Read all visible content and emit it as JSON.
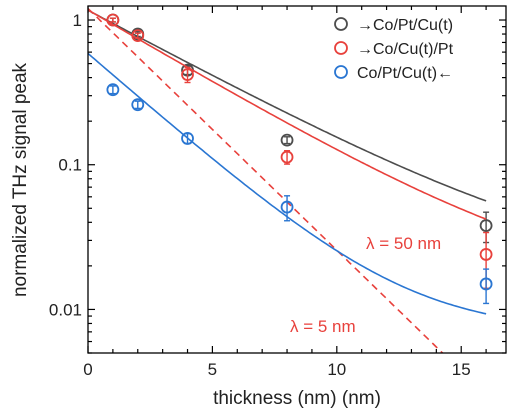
{
  "chart_data": {
    "type": "scatter",
    "xlabel": "thickness (nm) (nm)",
    "ylabel": "normalized THz signal peak",
    "xlim": [
      0,
      16.8
    ],
    "ylim": [
      0.005,
      1.25
    ],
    "yscale": "log",
    "grid": false,
    "legend_position": "top-right",
    "x_ticks": [
      0,
      5,
      10,
      15
    ],
    "x_tick_labels": [
      "0",
      "5",
      "10",
      "15"
    ],
    "y_ticks": [
      0.01,
      0.1,
      1
    ],
    "y_tick_labels": [
      "0.01",
      "0.1",
      "1"
    ],
    "series": [
      {
        "name": "→Co/Pt/Cu(t)",
        "color": "#4d4d4d",
        "points": [
          {
            "x": 1,
            "y": 1.0,
            "err": 0.03
          },
          {
            "x": 2,
            "y": 0.8,
            "err": 0.03
          },
          {
            "x": 4,
            "y": 0.45,
            "err": 0.03
          },
          {
            "x": 8,
            "y": 0.148,
            "err": 0.008
          },
          {
            "x": 16,
            "y": 0.038,
            "err": 0.009
          }
        ],
        "fit": {
          "form": "exp",
          "a": 1.15,
          "lambda": 4.7,
          "c": 0.018
        }
      },
      {
        "name": "→Co/Cu(t)/Pt",
        "color": "#e8413c",
        "points": [
          {
            "x": 1,
            "y": 1.0,
            "err": 0.03
          },
          {
            "x": 2,
            "y": 0.78,
            "err": 0.03
          },
          {
            "x": 4,
            "y": 0.42,
            "err": 0.05
          },
          {
            "x": 8,
            "y": 0.113,
            "err": 0.012
          },
          {
            "x": 16,
            "y": 0.024,
            "err": 0.01
          }
        ],
        "fit": {
          "form": "exp",
          "a": 1.16,
          "lambda": 4.3,
          "c": 0.014
        }
      },
      {
        "name": "Co/Pt/Cu(t)←",
        "color": "#2a76d2",
        "points": [
          {
            "x": 1,
            "y": 0.33,
            "err": 0.02
          },
          {
            "x": 2,
            "y": 0.26,
            "err": 0.015
          },
          {
            "x": 4,
            "y": 0.152,
            "err": 0.012
          },
          {
            "x": 8,
            "y": 0.051,
            "err": 0.01
          },
          {
            "x": 16,
            "y": 0.015,
            "err": 0.004
          }
        ],
        "fit": {
          "form": "exp",
          "a": 0.58,
          "lambda": 2.9,
          "c": 0.007
        }
      }
    ],
    "reference_line": {
      "color": "#e8413c",
      "style": "dashed",
      "x_start": 0,
      "y_start": 1.2,
      "lambda": 2.6
    },
    "annotations": [
      {
        "text": "λ = 50 nm",
        "color": "#e8413c"
      },
      {
        "text": "λ = 5 nm",
        "color": "#e8413c"
      }
    ]
  }
}
